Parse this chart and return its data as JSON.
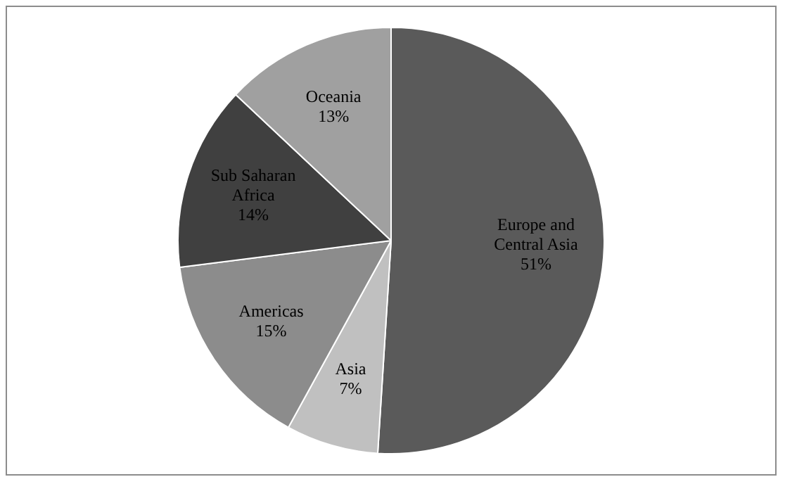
{
  "chart_data": {
    "type": "pie",
    "categories": [
      "Europe and Central Asia",
      "Asia",
      "Americas",
      "Sub Saharan Africa",
      "Oceania"
    ],
    "values": [
      51,
      7,
      15,
      14,
      13
    ],
    "value_labels": [
      "51%",
      "7%",
      "15%",
      "14%",
      "13%"
    ],
    "colors": [
      "#5a5a5a",
      "#c0c0c0",
      "#8c8c8c",
      "#404040",
      "#a0a0a0"
    ],
    "legend": false
  }
}
